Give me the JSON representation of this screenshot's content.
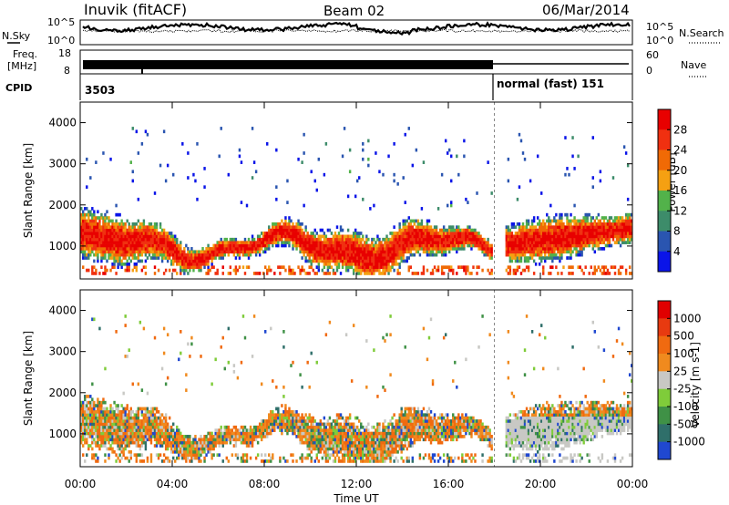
{
  "header": {
    "station": "Inuvik (fitACF)",
    "beam": "Beam 02",
    "date": "06/Mar/2014"
  },
  "noise_panel": {
    "left_label": "N.Sky",
    "right_label": "N.Search",
    "left_ticks": [
      "10^5",
      "10^0"
    ],
    "right_ticks": [
      "10^5",
      "10^0"
    ]
  },
  "freq_panel": {
    "left_label_1": "Freq.",
    "left_label_2": "[MHz]",
    "left_ticks": [
      "18",
      "8"
    ],
    "right_label": "Nave",
    "right_ticks": [
      "60",
      "0"
    ]
  },
  "cpid_panel": {
    "label": "CPID",
    "first_program": "3503",
    "second_program": "normal (fast) 151"
  },
  "colors": {
    "power": [
      "#0a14e8",
      "#2a55b0",
      "#3d8c6a",
      "#52b24a",
      "#f5a012",
      "#f06a05",
      "#f03010",
      "#e80000"
    ],
    "velocity": [
      "#2048d0",
      "#2f6f6a",
      "#3f9146",
      "#7fcc3a",
      "#c8c8c4",
      "#f08a1e",
      "#f06a10",
      "#e83a10",
      "#e00000"
    ],
    "ground_scatter": "#c8c8c4"
  },
  "chart_data": [
    {
      "type": "heatmap",
      "title": "Power",
      "xlabel": "",
      "ylabel": "Slant Range [km]",
      "xlim": [
        "00:00",
        "24:00"
      ],
      "ylim": [
        200,
        4500
      ],
      "x_ticks": [
        "00:00",
        "04:00",
        "08:00",
        "12:00",
        "16:00",
        "20:00",
        "00:00"
      ],
      "y_ticks": [
        1000,
        2000,
        3000,
        4000
      ],
      "colorbar": {
        "label": "Power [dB]",
        "min": 0,
        "max": 32,
        "ticks": [
          4,
          8,
          12,
          16,
          20,
          24,
          28
        ]
      },
      "cpid_change_hour": 18.0,
      "scatter_bands_km": [
        {
          "from_hour": 0.0,
          "to_hour": 18.0,
          "range_km": [
            400,
            1800
          ],
          "peak_db": 28
        },
        {
          "from_hour": 18.5,
          "to_hour": 24.0,
          "range_km": [
            500,
            2000
          ],
          "peak_db": 26
        }
      ]
    },
    {
      "type": "heatmap",
      "title": "Velocity",
      "xlabel": "Time UT",
      "ylabel": "Slant Range [km]",
      "xlim": [
        "00:00",
        "24:00"
      ],
      "ylim": [
        200,
        4500
      ],
      "x_ticks": [
        "00:00",
        "04:00",
        "08:00",
        "12:00",
        "16:00",
        "20:00",
        "00:00"
      ],
      "y_ticks": [
        1000,
        2000,
        3000,
        4000
      ],
      "colorbar": {
        "label": "Velocity [m s-1]",
        "ticks": [
          "1000",
          "500",
          "100",
          "25",
          "-25",
          "-100",
          "-500",
          "-1000"
        ]
      },
      "cpid_change_hour": 18.0
    }
  ]
}
